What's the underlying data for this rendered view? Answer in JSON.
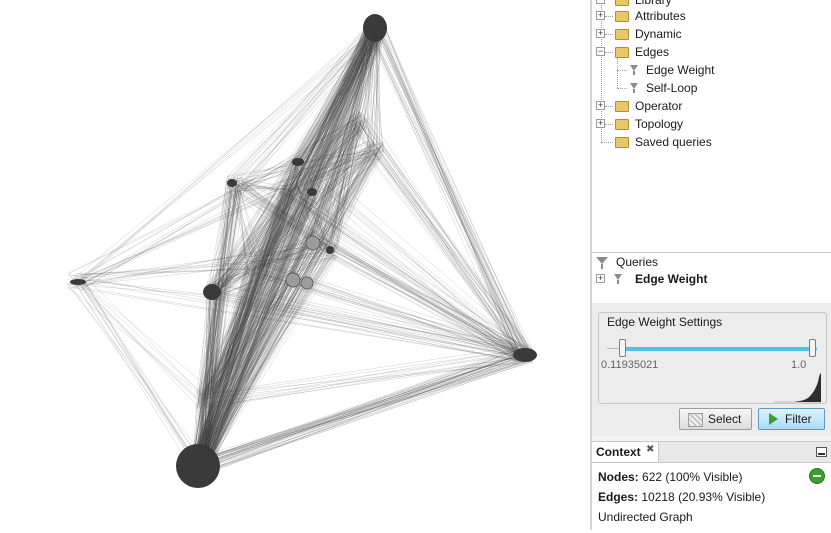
{
  "library": {
    "root_label": "Library",
    "items": [
      {
        "label": "Attributes"
      },
      {
        "label": "Dynamic"
      },
      {
        "label": "Edges",
        "children": [
          {
            "label": "Edge Weight"
          },
          {
            "label": "Self-Loop"
          }
        ]
      },
      {
        "label": "Operator"
      },
      {
        "label": "Topology"
      },
      {
        "label": "Saved queries"
      }
    ]
  },
  "queries": {
    "header": "Queries",
    "items": [
      {
        "label": "Edge Weight"
      }
    ]
  },
  "settings": {
    "title": "Edge Weight Settings",
    "min_value": "0.11935021",
    "max_value": "1.0",
    "track_color": "#4fc3e3",
    "select_label": "Select",
    "filter_label": "Filter"
  },
  "context": {
    "tab_label": "Context",
    "nodes_label": "Nodes:",
    "nodes_value": "622 (100% Visible)",
    "edges_label": "Edges:",
    "edges_value": "10218 (20.93% Visible)",
    "graph_type": "Undirected Graph",
    "status_color": "#3aa02c"
  }
}
